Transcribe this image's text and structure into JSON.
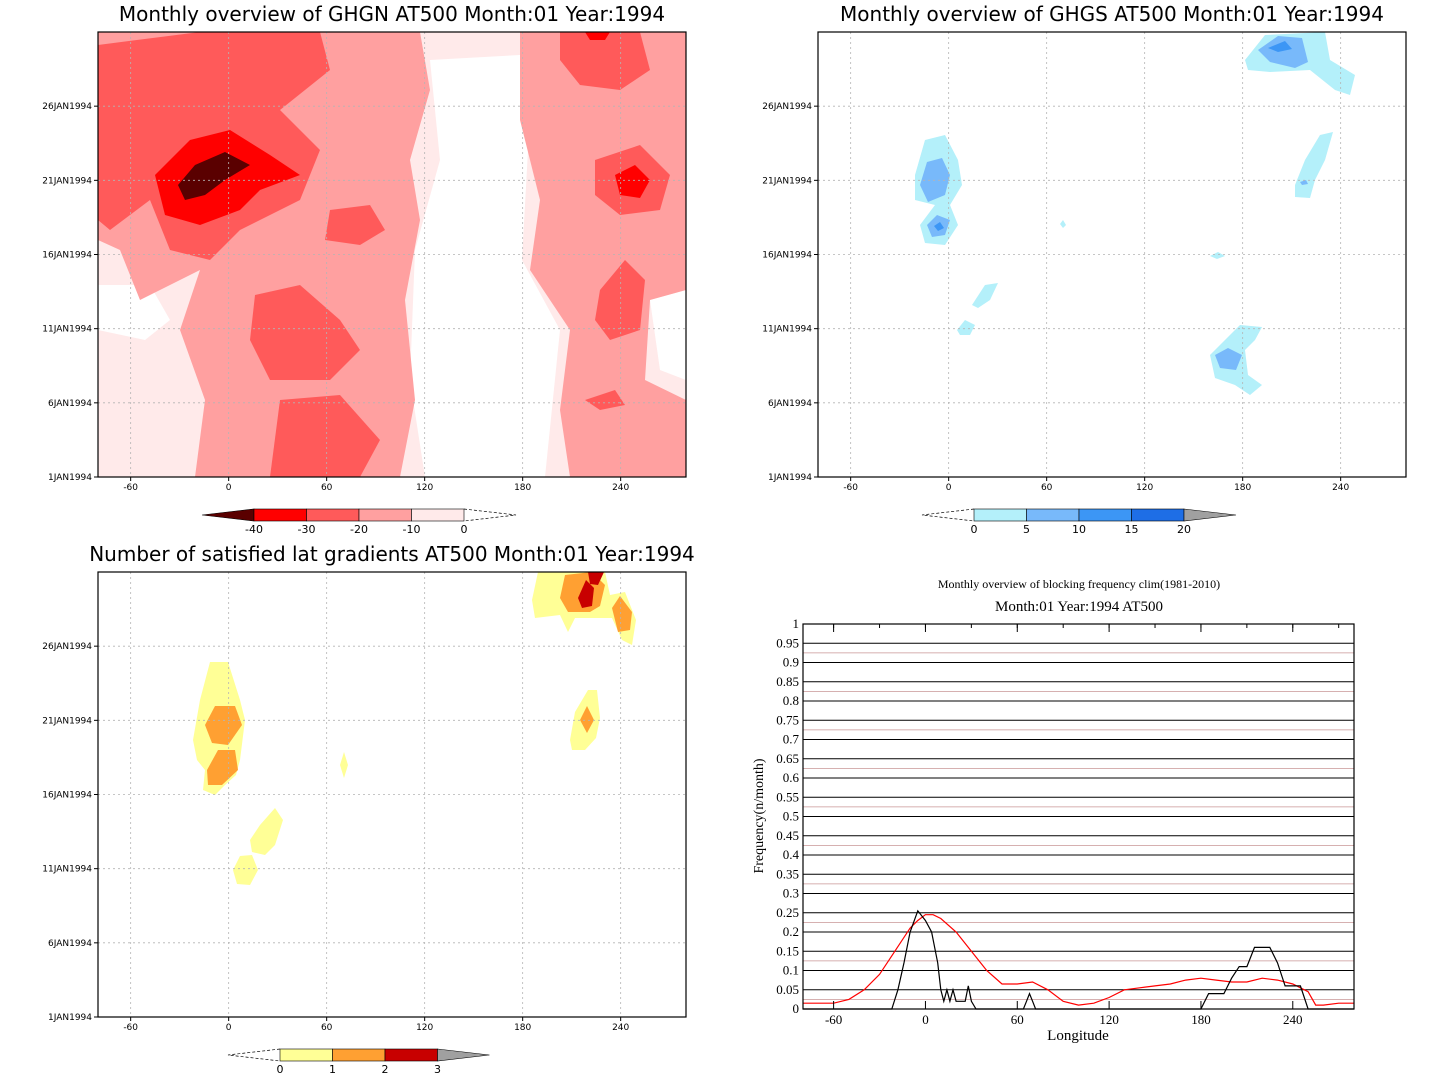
{
  "chart_data": [
    {
      "type": "heatmap",
      "title": "Monthly overview of GHGN AT500 Month:01 Year:1994",
      "x_ticks": [
        "-60",
        "0",
        "60",
        "120",
        "180",
        "240"
      ],
      "y_ticks": [
        "1JAN1994",
        "6JAN1994",
        "11JAN1994",
        "16JAN1994",
        "21JAN1994",
        "26JAN1994"
      ],
      "xlim": [
        -80,
        280
      ],
      "colorbar": {
        "labels": [
          "-40",
          "-30",
          "-20",
          "-10",
          "0"
        ],
        "colors": [
          "#5a0000",
          "#ff0000",
          "#ff5a5a",
          "#ffa0a0",
          "#ffeaea"
        ]
      }
    },
    {
      "type": "heatmap",
      "title": "Monthly overview of GHGS AT500 Month:01 Year:1994",
      "x_ticks": [
        "-60",
        "0",
        "60",
        "120",
        "180",
        "240"
      ],
      "y_ticks": [
        "1JAN1994",
        "6JAN1994",
        "11JAN1994",
        "16JAN1994",
        "21JAN1994",
        "26JAN1994"
      ],
      "xlim": [
        -80,
        280
      ],
      "colorbar": {
        "labels": [
          "0",
          "5",
          "10",
          "15",
          "20"
        ],
        "colors": [
          "#b4f0fa",
          "#78b9fa",
          "#3c96f5",
          "#1e6ee6",
          "#a0a0a0"
        ]
      }
    },
    {
      "type": "heatmap",
      "title": "Number of satisfied lat gradients AT500 Month:01 Year:1994",
      "x_ticks": [
        "-60",
        "0",
        "60",
        "120",
        "180",
        "240"
      ],
      "y_ticks": [
        "1JAN1994",
        "6JAN1994",
        "11JAN1994",
        "16JAN1994",
        "21JAN1994",
        "26JAN1994"
      ],
      "xlim": [
        -80,
        280
      ],
      "colorbar": {
        "labels": [
          "0",
          "1",
          "2",
          "3"
        ],
        "colors": [
          "#ffff96",
          "#ffa032",
          "#c80000",
          "#a0a0a0"
        ]
      }
    },
    {
      "type": "line",
      "title": "Monthly overview of blocking frequency clim(1981-2010)",
      "subtitle": "Month:01 Year:1994  AT500",
      "xlabel": "Longitude",
      "ylabel": "Frequency(n/month)",
      "xlim": [
        -80,
        280
      ],
      "ylim": [
        0,
        1
      ],
      "x_ticks": [
        "-60",
        "0",
        "60",
        "120",
        "180",
        "240"
      ],
      "y_ticks": [
        "0",
        "0.05",
        "0.1",
        "0.15",
        "0.2",
        "0.25",
        "0.3",
        "0.35",
        "0.4",
        "0.45",
        "0.5",
        "0.55",
        "0.6",
        "0.65",
        "0.7",
        "0.75",
        "0.8",
        "0.85",
        "0.9",
        "0.95",
        "1"
      ],
      "grid": true,
      "series": [
        {
          "color": "#ff0000",
          "x": [
            -80,
            -70,
            -60,
            -50,
            -40,
            -30,
            -20,
            -10,
            -5,
            0,
            5,
            10,
            20,
            30,
            40,
            50,
            60,
            70,
            80,
            90,
            100,
            110,
            120,
            130,
            140,
            150,
            160,
            170,
            180,
            190,
            200,
            210,
            220,
            230,
            240,
            250,
            255,
            260,
            270,
            280
          ],
          "y": [
            0.015,
            0.015,
            0.015,
            0.025,
            0.05,
            0.09,
            0.15,
            0.21,
            0.23,
            0.245,
            0.245,
            0.235,
            0.2,
            0.15,
            0.1,
            0.065,
            0.065,
            0.07,
            0.05,
            0.02,
            0.01,
            0.015,
            0.03,
            0.05,
            0.055,
            0.06,
            0.065,
            0.075,
            0.08,
            0.075,
            0.07,
            0.07,
            0.08,
            0.075,
            0.065,
            0.045,
            0.01,
            0.01,
            0.015,
            0.015
          ]
        },
        {
          "color": "#000000",
          "x": [
            -80,
            -22,
            -18,
            -14,
            -10,
            -5,
            0,
            4,
            8,
            10,
            12,
            14,
            16,
            18,
            20,
            22,
            24,
            26,
            28,
            30,
            33,
            60,
            64,
            66,
            68,
            70,
            72,
            180,
            185,
            190,
            195,
            200,
            205,
            210,
            215,
            220,
            225,
            230,
            235,
            240,
            245,
            250,
            260,
            280
          ],
          "y": [
            0,
            0,
            0.05,
            0.12,
            0.2,
            0.255,
            0.23,
            0.2,
            0.12,
            0.05,
            0.02,
            0.05,
            0.02,
            0.05,
            0.02,
            0.02,
            0.02,
            0.02,
            0.06,
            0.02,
            0,
            0,
            0,
            0.02,
            0.04,
            0.02,
            0,
            0,
            0.04,
            0.04,
            0.04,
            0.08,
            0.11,
            0.11,
            0.16,
            0.16,
            0.16,
            0.12,
            0.06,
            0.06,
            0.06,
            0,
            0,
            0
          ]
        }
      ]
    }
  ]
}
